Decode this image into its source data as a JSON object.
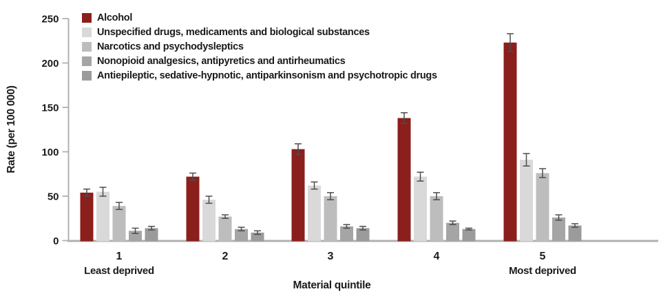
{
  "colors": {
    "background": "#ffffff",
    "axis_line": "#b0b0b0",
    "error_bar": "#4d4d4d",
    "text": "#1a1a1a"
  },
  "chart_data": {
    "type": "bar",
    "title": "",
    "xlabel": "Material quintile",
    "ylabel": "Rate (per 100 000)",
    "ylim": [
      0,
      250
    ],
    "yticks": [
      0,
      50,
      100,
      150,
      200,
      250
    ],
    "grid": false,
    "legend_position": "top-left-inside",
    "error_bars": true,
    "categories": [
      "1",
      "2",
      "3",
      "4",
      "5"
    ],
    "category_sublabels": [
      "Least deprived",
      "",
      "",
      "",
      "Most deprived"
    ],
    "series": [
      {
        "name": "Alcohol",
        "color": "#8a1f1c",
        "values": [
          54,
          72,
          103,
          138,
          223
        ],
        "errors": [
          4,
          4,
          6,
          6,
          10
        ]
      },
      {
        "name": "Unspecified drugs, medicaments and biological substances",
        "color": "#d9d9d9",
        "values": [
          55,
          46,
          62,
          72,
          91
        ],
        "errors": [
          5,
          4,
          4,
          5,
          7
        ]
      },
      {
        "name": "Narcotics and psychodysleptics",
        "color": "#bdbdbd",
        "values": [
          39,
          27,
          50,
          50,
          76
        ],
        "errors": [
          4,
          2,
          4,
          4,
          5
        ]
      },
      {
        "name": "Nonopioid analgesics, antipyretics and antirheumatics",
        "color": "#a5a5a5",
        "values": [
          11,
          13,
          16,
          20,
          26
        ],
        "errors": [
          3,
          2,
          2,
          2,
          3
        ]
      },
      {
        "name": "Antiepileptic, sedative-hypnotic, antiparkinsonism and psychotropic drugs",
        "color": "#9b9b9b",
        "values": [
          14,
          9,
          14,
          13,
          17
        ],
        "errors": [
          2,
          2,
          2,
          1,
          2
        ]
      }
    ]
  }
}
